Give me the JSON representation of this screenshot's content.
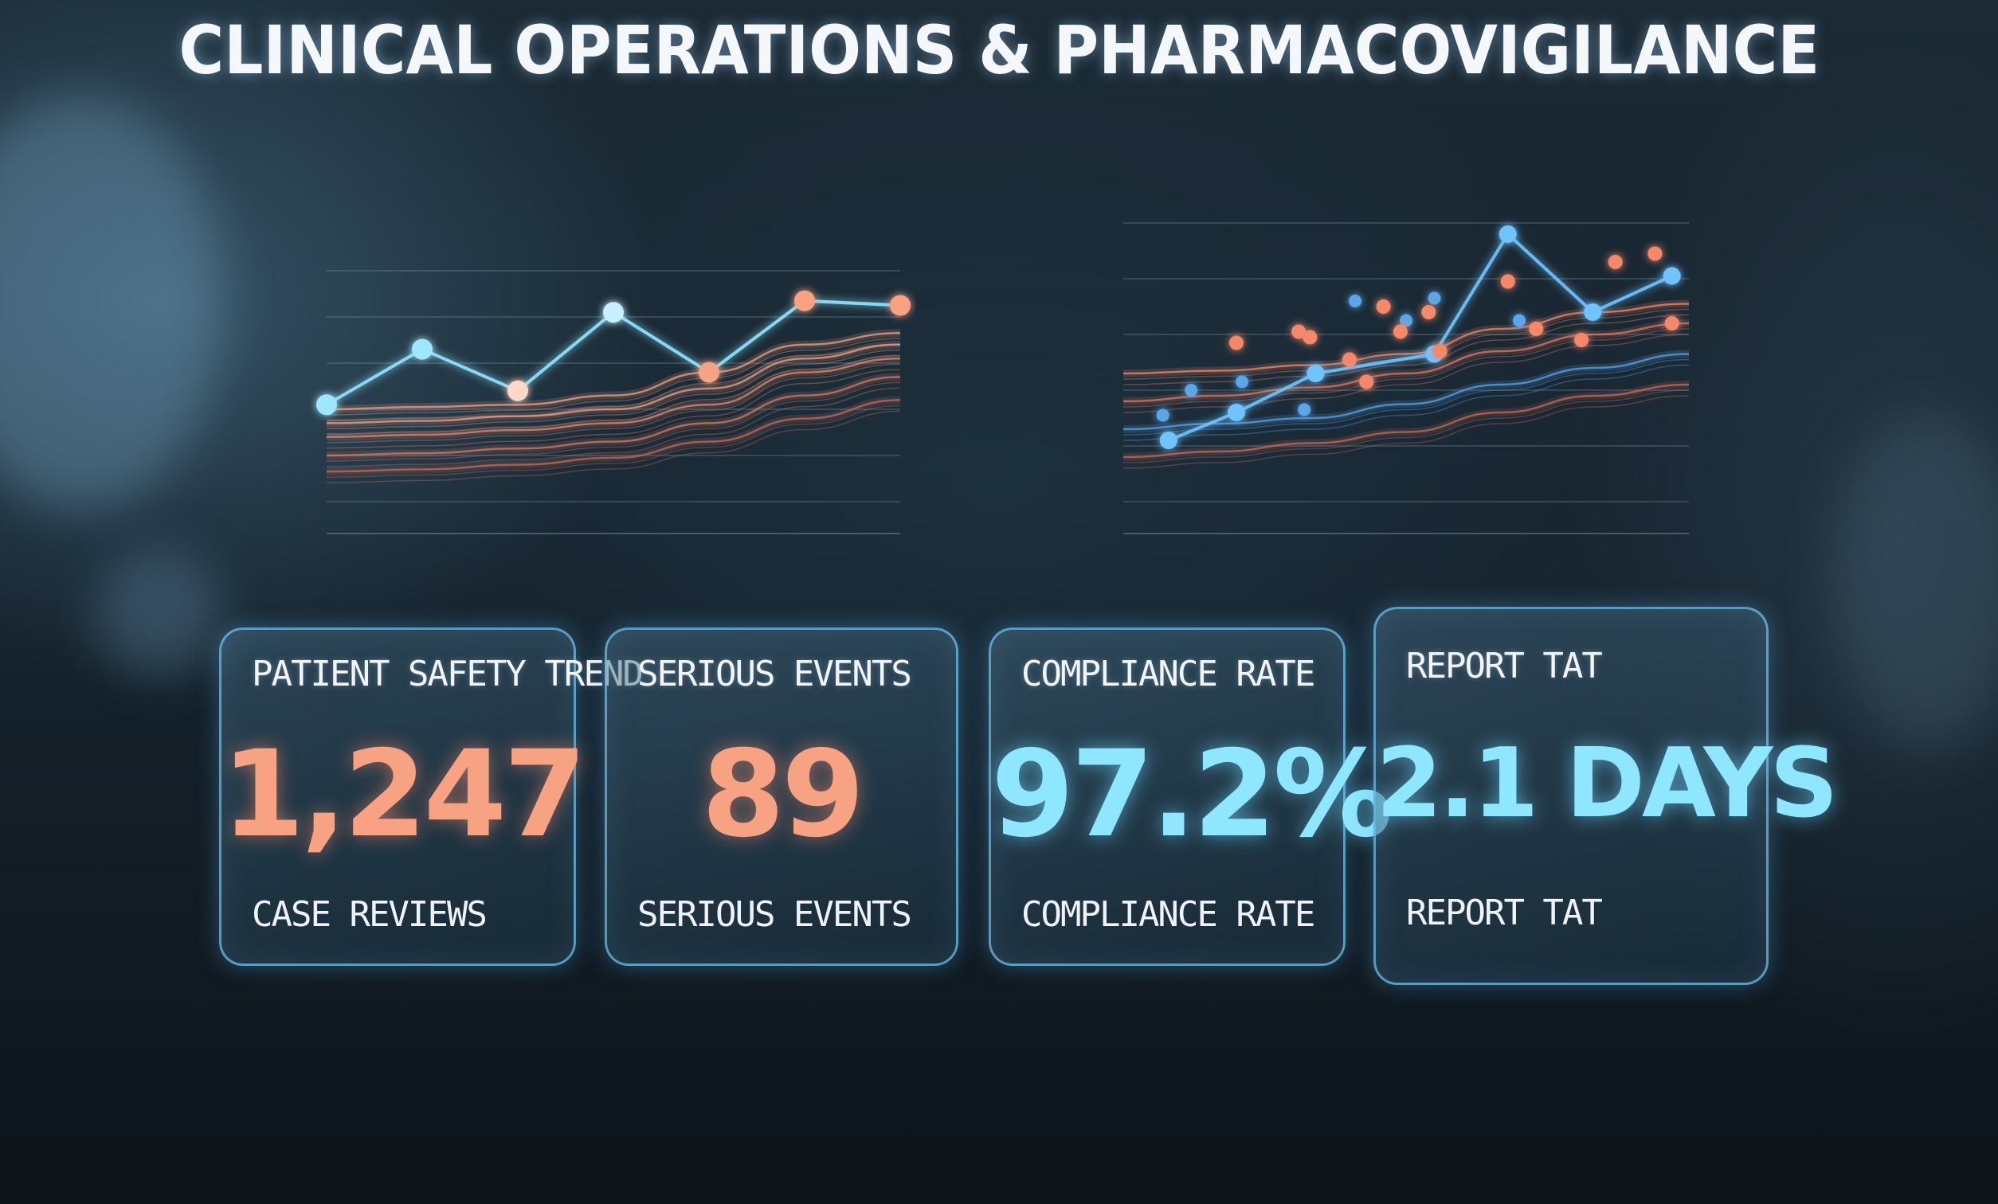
{
  "title": "CLINICAL OPERATIONS & PHARMACOVIGILANCE",
  "colors": {
    "accent_orange": "#f6a283",
    "accent_cyan": "#8fe6ff",
    "card_border": "#6ebeeb",
    "background": "#101a22"
  },
  "kpis": [
    {
      "label": "PATIENT SAFETY TREND",
      "value": "1,247",
      "caption": "CASE REVIEWS",
      "color": "orange"
    },
    {
      "label": "SERIOUS EVENTS",
      "value": "89",
      "caption": "SERIOUS EVENTS",
      "color": "orange"
    },
    {
      "label": "COMPLIANCE RATE",
      "value": "97.2%",
      "caption": "COMPLIANCE RATE",
      "color": "cyan"
    },
    {
      "label": "REPORT TAT",
      "value": "2.1 DAYS",
      "caption": "REPORT TAT",
      "color": "cyan"
    }
  ],
  "chart_data": [
    {
      "type": "line",
      "title": "",
      "xlabel": "",
      "ylabel": "",
      "x": [
        0,
        1,
        2,
        3,
        4,
        5,
        6
      ],
      "ylim": [
        0,
        10
      ],
      "grid": true,
      "series": [
        {
          "values": [
            4.2,
            6.6,
            4.8,
            8.2,
            5.6,
            8.7,
            8.5
          ],
          "color": "#8fe6ff"
        }
      ],
      "trend_bands": [
        {
          "values": [
            4.0,
            4.1,
            4.2,
            4.6,
            5.6,
            6.8,
            7.3
          ],
          "color": "#f6a283"
        },
        {
          "values": [
            3.4,
            3.5,
            3.7,
            4.0,
            4.9,
            6.2,
            6.8
          ],
          "color": "#f6a283"
        },
        {
          "values": [
            2.8,
            2.9,
            3.1,
            3.4,
            4.2,
            5.6,
            6.2
          ],
          "color": "#e98a6e"
        },
        {
          "values": [
            2.0,
            2.1,
            2.3,
            2.6,
            3.4,
            4.6,
            5.4
          ],
          "color": "#d97a63"
        },
        {
          "values": [
            1.3,
            1.4,
            1.6,
            1.9,
            2.6,
            3.6,
            4.4
          ],
          "color": "#c86c58"
        }
      ]
    },
    {
      "type": "scatter",
      "title": "",
      "xlabel": "",
      "ylabel": "",
      "xlim": [
        0,
        10
      ],
      "ylim": [
        0,
        10
      ],
      "grid": true,
      "series": [
        {
          "values": [
            [
              0.8,
              2.2
            ],
            [
              2.0,
              3.2
            ],
            [
              3.4,
              4.6
            ],
            [
              5.5,
              5.3
            ],
            [
              6.8,
              9.6
            ],
            [
              8.3,
              6.8
            ],
            [
              9.7,
              8.1
            ]
          ],
          "color": "#6fc3ff",
          "connected": true
        },
        {
          "values": [
            [
              0.7,
              3.1
            ],
            [
              1.2,
              4.0
            ],
            [
              2.1,
              4.3
            ],
            [
              3.2,
              3.3
            ],
            [
              4.1,
              7.2
            ],
            [
              5.0,
              6.5
            ],
            [
              5.5,
              7.3
            ],
            [
              7.0,
              6.5
            ]
          ],
          "color": "#5aa6e8",
          "connected": false
        },
        {
          "values": [
            [
              2.0,
              5.7
            ],
            [
              3.3,
              5.9
            ],
            [
              4.0,
              5.1
            ],
            [
              4.3,
              4.3
            ],
            [
              4.6,
              7.0
            ],
            [
              5.4,
              6.8
            ],
            [
              5.6,
              5.4
            ],
            [
              6.8,
              7.9
            ],
            [
              7.3,
              6.2
            ],
            [
              8.1,
              5.8
            ],
            [
              8.7,
              8.6
            ],
            [
              9.4,
              8.9
            ],
            [
              9.7,
              6.4
            ],
            [
              3.1,
              6.1
            ],
            [
              4.9,
              6.1
            ]
          ],
          "color": "#f4886a",
          "connected": false
        }
      ],
      "trend_bands": [
        {
          "values": [
            4.6,
            4.7,
            4.9,
            5.3,
            6.2,
            6.8,
            7.1
          ],
          "color": "#f4886a"
        },
        {
          "values": [
            3.6,
            3.8,
            4.1,
            4.6,
            5.4,
            6.0,
            6.4
          ],
          "color": "#e07a62"
        },
        {
          "values": [
            2.6,
            2.8,
            3.0,
            3.5,
            4.2,
            4.8,
            5.3
          ],
          "color": "#5aa6e8"
        },
        {
          "values": [
            1.6,
            1.8,
            2.1,
            2.5,
            3.2,
            3.8,
            4.2
          ],
          "color": "#c86c58"
        }
      ]
    }
  ]
}
